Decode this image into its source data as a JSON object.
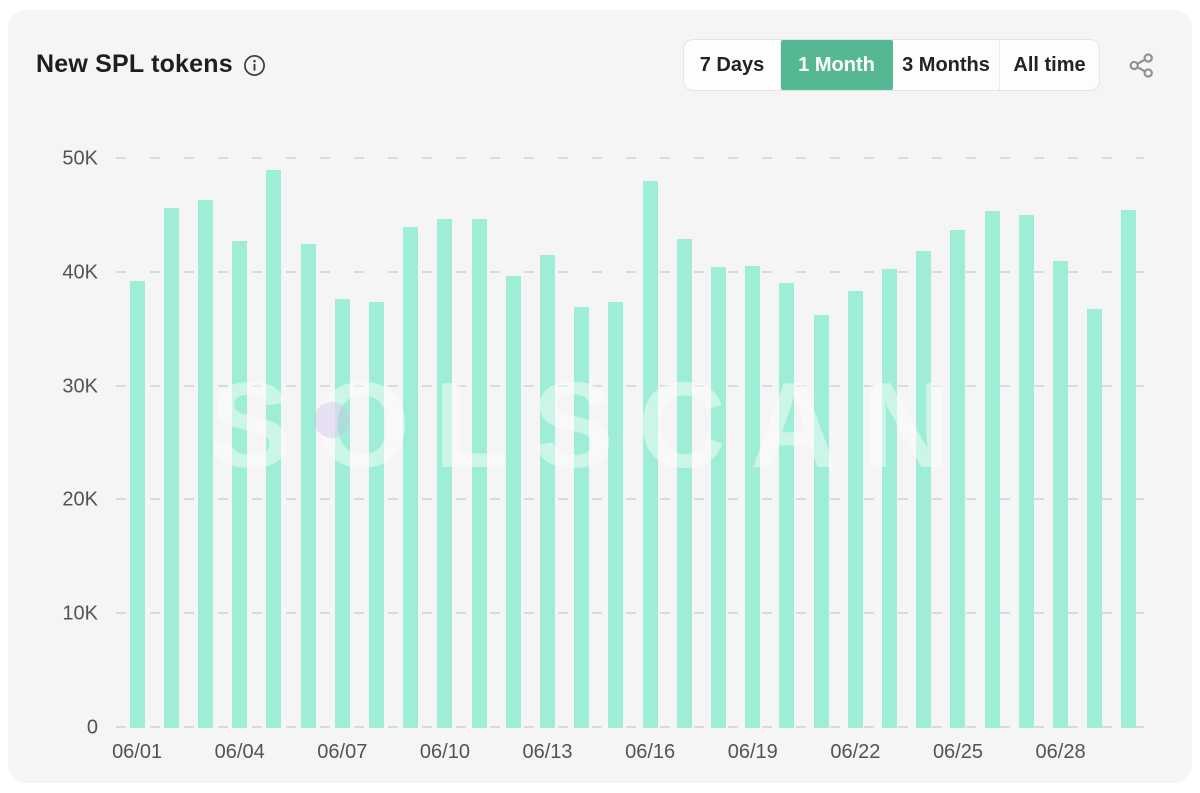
{
  "header": {
    "title": "New SPL tokens",
    "range_buttons": [
      {
        "label": "7 Days",
        "selected": false
      },
      {
        "label": "1 Month",
        "selected": true
      },
      {
        "label": "3 Months",
        "selected": false
      },
      {
        "label": "All time",
        "selected": false
      }
    ]
  },
  "icons": {
    "info": "info-icon",
    "share": "share-icon"
  },
  "colors": {
    "bar": "#9eedd6",
    "accent_green": "#55b893",
    "card_bg": "#f5f5f6",
    "axis_text": "#515356",
    "gridline": "#d9dadb"
  },
  "watermark": {
    "text": "SOLSCAN"
  },
  "chart_data": {
    "type": "bar",
    "title": "New SPL tokens",
    "x": [
      "06/01",
      "06/02",
      "06/03",
      "06/04",
      "06/05",
      "06/06",
      "06/07",
      "06/08",
      "06/09",
      "06/10",
      "06/11",
      "06/12",
      "06/13",
      "06/14",
      "06/15",
      "06/16",
      "06/17",
      "06/18",
      "06/19",
      "06/20",
      "06/21",
      "06/22",
      "06/23",
      "06/24",
      "06/25",
      "06/26",
      "06/27",
      "06/28",
      "06/29",
      "06/30"
    ],
    "values": [
      39300,
      45700,
      46400,
      42800,
      49000,
      42500,
      37700,
      37400,
      44000,
      44700,
      44700,
      39700,
      41600,
      37000,
      37400,
      48100,
      43000,
      40500,
      40600,
      39100,
      36300,
      38400,
      40300,
      41900,
      43800,
      45400,
      45100,
      41000,
      36800,
      45500
    ],
    "xlabel": "",
    "ylabel": "",
    "ylim": [
      0,
      50000
    ],
    "y_ticks": [
      "0",
      "10K",
      "20K",
      "30K",
      "40K",
      "50K"
    ],
    "x_tick_every": 3,
    "grid": "horizontal-dashed",
    "legend": "none"
  }
}
